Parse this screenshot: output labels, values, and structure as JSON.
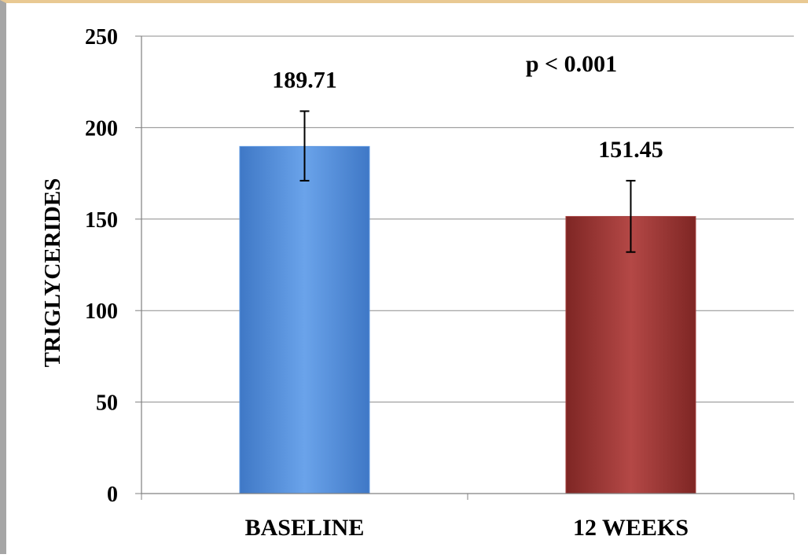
{
  "chart_data": {
    "type": "bar",
    "title": "",
    "xlabel": "",
    "ylabel": "TRIGLYCERIDES",
    "ylim": [
      0,
      250
    ],
    "yticks": [
      0,
      50,
      100,
      150,
      200,
      250
    ],
    "categories": [
      "BASELINE",
      "12 WEEKS"
    ],
    "values": [
      189.71,
      151.45
    ],
    "data_labels": [
      "189.71",
      "151.45"
    ],
    "error_bars": [
      {
        "low": 171,
        "high": 209
      },
      {
        "low": 132,
        "high": 171
      }
    ],
    "bar_colors": [
      "#5b96e0",
      "#a33d3b"
    ],
    "grid": true,
    "annotation": "p < 0.001"
  }
}
